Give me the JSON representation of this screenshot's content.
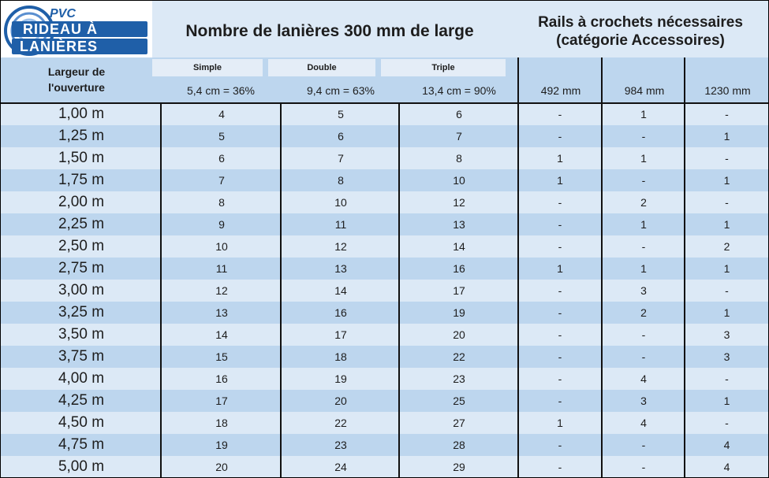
{
  "logo": {
    "top_text": "PVC",
    "line1": "RIDEAU À",
    "line2": "LANIÈRES"
  },
  "header": {
    "title_left": "Nombre de lanières 300 mm de large",
    "title_right_line1": "Rails à crochets nécessaires",
    "title_right_line2": "(catégorie Accessoires)"
  },
  "subheader": {
    "width_label_line1": "Largeur de",
    "width_label_line2": "l'ouverture",
    "simple_label": "Simple",
    "simple_pct": "5,4 cm = 36%",
    "double_label": "Double",
    "double_pct": "9,4 cm = 63%",
    "triple_label": "Triple",
    "triple_pct": "13,4 cm = 90%",
    "rail_492": "492 mm",
    "rail_984": "984 mm",
    "rail_1230": "1230 mm"
  },
  "colors": {
    "light_row": "#dce9f6",
    "dark_row": "#bdd6ee",
    "logo_blue": "#1f5fa8"
  },
  "rows": [
    {
      "width": "1,00 m",
      "simple": "4",
      "double": "5",
      "triple": "6",
      "r492": "-",
      "r984": "1",
      "r1230": "-"
    },
    {
      "width": "1,25 m",
      "simple": "5",
      "double": "6",
      "triple": "7",
      "r492": "-",
      "r984": "-",
      "r1230": "1"
    },
    {
      "width": "1,50 m",
      "simple": "6",
      "double": "7",
      "triple": "8",
      "r492": "1",
      "r984": "1",
      "r1230": "-"
    },
    {
      "width": "1,75 m",
      "simple": "7",
      "double": "8",
      "triple": "10",
      "r492": "1",
      "r984": "-",
      "r1230": "1"
    },
    {
      "width": "2,00 m",
      "simple": "8",
      "double": "10",
      "triple": "12",
      "r492": "-",
      "r984": "2",
      "r1230": "-"
    },
    {
      "width": "2,25 m",
      "simple": "9",
      "double": "11",
      "triple": "13",
      "r492": "-",
      "r984": "1",
      "r1230": "1"
    },
    {
      "width": "2,50 m",
      "simple": "10",
      "double": "12",
      "triple": "14",
      "r492": "-",
      "r984": "-",
      "r1230": "2"
    },
    {
      "width": "2,75 m",
      "simple": "11",
      "double": "13",
      "triple": "16",
      "r492": "1",
      "r984": "1",
      "r1230": "1"
    },
    {
      "width": "3,00 m",
      "simple": "12",
      "double": "14",
      "triple": "17",
      "r492": "-",
      "r984": "3",
      "r1230": "-"
    },
    {
      "width": "3,25 m",
      "simple": "13",
      "double": "16",
      "triple": "19",
      "r492": "-",
      "r984": "2",
      "r1230": "1"
    },
    {
      "width": "3,50 m",
      "simple": "14",
      "double": "17",
      "triple": "20",
      "r492": "-",
      "r984": "-",
      "r1230": "3"
    },
    {
      "width": "3,75 m",
      "simple": "15",
      "double": "18",
      "triple": "22",
      "r492": "-",
      "r984": "-",
      "r1230": "3"
    },
    {
      "width": "4,00 m",
      "simple": "16",
      "double": "19",
      "triple": "23",
      "r492": "-",
      "r984": "4",
      "r1230": "-"
    },
    {
      "width": "4,25 m",
      "simple": "17",
      "double": "20",
      "triple": "25",
      "r492": "-",
      "r984": "3",
      "r1230": "1"
    },
    {
      "width": "4,50 m",
      "simple": "18",
      "double": "22",
      "triple": "27",
      "r492": "1",
      "r984": "4",
      "r1230": "-"
    },
    {
      "width": "4,75 m",
      "simple": "19",
      "double": "23",
      "triple": "28",
      "r492": "-",
      "r984": "-",
      "r1230": "4"
    },
    {
      "width": "5,00 m",
      "simple": "20",
      "double": "24",
      "triple": "29",
      "r492": "-",
      "r984": "-",
      "r1230": "4"
    }
  ]
}
